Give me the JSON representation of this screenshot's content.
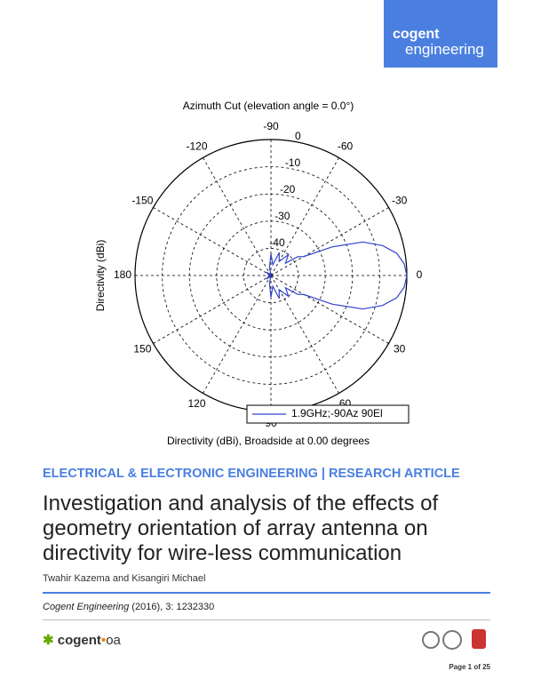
{
  "header": {
    "brand": "cogent",
    "journal": "engineering"
  },
  "chart_data": {
    "type": "polar",
    "title": "Azimuth Cut (elevation angle = 0.0°)",
    "xlabel": "Directivity (dBi), Broadside at 0.00 degrees",
    "ylabel": "Directivity (dBi)",
    "rlim": [
      -50,
      0
    ],
    "rticks": [
      0,
      -10,
      -20,
      -30,
      -40
    ],
    "thetaticks": [
      -90,
      -60,
      -30,
      0,
      30,
      60,
      90,
      120,
      150,
      180,
      -150,
      -120
    ],
    "grid": true,
    "series": [
      {
        "name": "1.9GHz;-90Az 90El",
        "color": "#3344cc",
        "theta": [
          -180,
          -160,
          -140,
          -120,
          -100,
          -90,
          -80,
          -70,
          -60,
          -50,
          -40,
          -35,
          -30,
          -25,
          -20,
          -15,
          -10,
          -5,
          0,
          5,
          10,
          15,
          20,
          25,
          30,
          35,
          40,
          50,
          60,
          70,
          80,
          90,
          100,
          120,
          140,
          160,
          180
        ],
        "values": [
          -50,
          -49,
          -48,
          -50,
          -47,
          -42,
          -46,
          -41,
          -44,
          -40,
          -43,
          -38,
          -36,
          -25,
          -14,
          -7.5,
          -3,
          -0.8,
          0,
          -0.8,
          -3,
          -7.5,
          -14,
          -25,
          -36,
          -38,
          -43,
          -40,
          -44,
          -41,
          -46,
          -42,
          -47,
          -50,
          -48,
          -49,
          -50
        ]
      }
    ]
  },
  "section": "ELECTRICAL & ELECTRONIC ENGINEERING | RESEARCH ARTICLE",
  "title": [
    "Investigation and analysis of the effects of",
    "geometry orientation of array antenna on",
    "directivity for wire-less communication"
  ],
  "authors": "Twahir Kazema and Kisangiri Michael",
  "citation": {
    "journal": "Cogent Engineering",
    "details": " (2016), 3: 1232330"
  },
  "footer": {
    "brand": "cogent",
    "suffix": "oa",
    "page": "Page 1 of 25"
  }
}
